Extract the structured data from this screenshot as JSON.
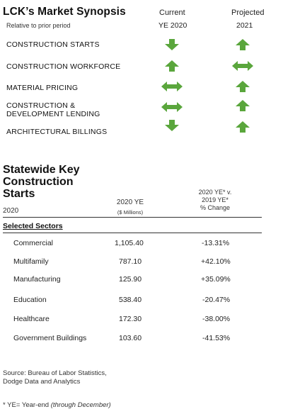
{
  "synopsis": {
    "title": "LCK’s Market Synopsis",
    "subtitle": "Relative to prior period",
    "col_current": "Current",
    "col_current_sub": "YE 2020",
    "col_projected": "Projected",
    "col_projected_sub": "2021",
    "rows": [
      {
        "label": "CONSTRUCTION STARTS",
        "current": "down",
        "projected": "up"
      },
      {
        "label": "CONSTRUCTION WORKFORCE",
        "current": "up",
        "projected": "both"
      },
      {
        "label": "MATERIAL PRICING",
        "current": "both",
        "projected": "up"
      },
      {
        "label_line1": "CONSTRUCTION &",
        "label_line2": "DEVELOPMENT LENDING",
        "current": "both",
        "projected": "up"
      },
      {
        "label": "ARCHITECTURAL BILLINGS",
        "current": "down",
        "projected": "up"
      }
    ],
    "arrow_color": "#5aa63c"
  },
  "starts": {
    "title_line1": "Statewide Key",
    "title_line2": "Construction",
    "title_line3": "Starts",
    "year": "2020",
    "col_ye": "2020 YE",
    "col_ye_sub": "($ Millions)",
    "col_change_line1": "2020 YE* v.",
    "col_change_line2": "2019 YE*",
    "col_change_line3": "% Change",
    "section_label": "Selected Sectors",
    "rows": [
      {
        "sector": "Commercial",
        "value": "1,105.40",
        "change": "-13.31%"
      },
      {
        "sector": "Multifamily",
        "value": "787.10",
        "change": "+42.10%"
      },
      {
        "sector": "Manufacturing",
        "value": "125.90",
        "change": "+35.09%"
      },
      {
        "sector": "Education",
        "value": "538.40",
        "change": "-20.47%"
      },
      {
        "sector": "Healthcare",
        "value": "172.30",
        "change": "-38.00%"
      },
      {
        "sector": "Government Buildings",
        "value": "103.60",
        "change": "-41.53%"
      }
    ]
  },
  "footer": {
    "source_line1": "Source: Bureau of Labor Statistics,",
    "source_line2": "Dodge Data and Analytics",
    "note_prefix": "* YE= Year-end ",
    "note_italic": "(through December)"
  }
}
